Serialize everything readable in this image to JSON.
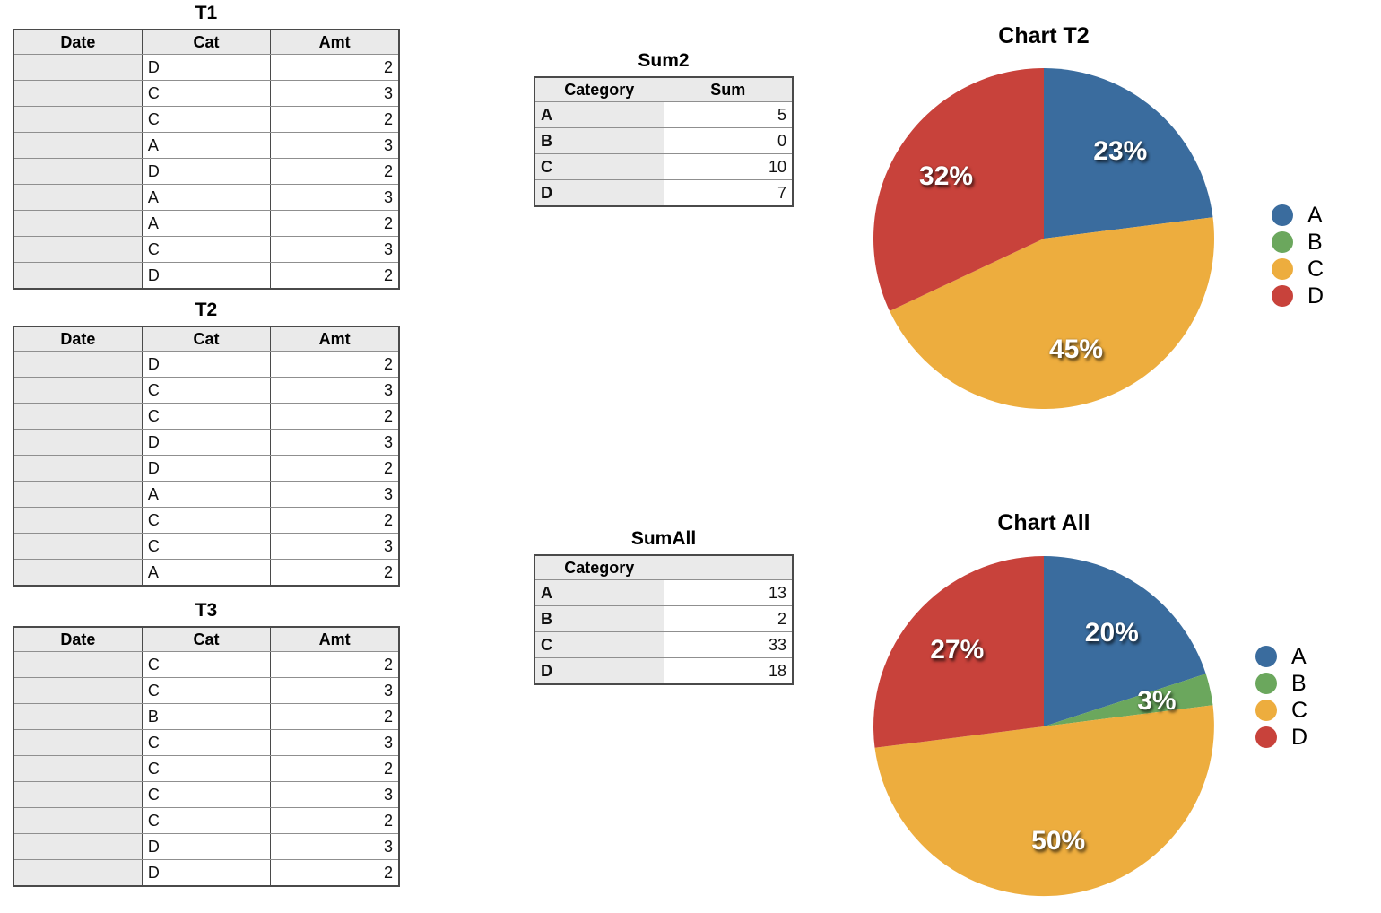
{
  "page": {
    "background": "#ffffff"
  },
  "palette": {
    "A": "#3A6C9E",
    "B": "#6BA75D",
    "C": "#EDAD3E",
    "D": "#C8423B"
  },
  "tables": [
    {
      "title": "T1",
      "headers": [
        "Date",
        "Cat",
        "Amt"
      ],
      "rows": [
        [
          "",
          "D",
          "2"
        ],
        [
          "",
          "C",
          "3"
        ],
        [
          "",
          "C",
          "2"
        ],
        [
          "",
          "A",
          "3"
        ],
        [
          "",
          "D",
          "2"
        ],
        [
          "",
          "A",
          "3"
        ],
        [
          "",
          "A",
          "2"
        ],
        [
          "",
          "C",
          "3"
        ],
        [
          "",
          "D",
          "2"
        ]
      ]
    },
    {
      "title": "T2",
      "headers": [
        "Date",
        "Cat",
        "Amt"
      ],
      "rows": [
        [
          "",
          "D",
          "2"
        ],
        [
          "",
          "C",
          "3"
        ],
        [
          "",
          "C",
          "2"
        ],
        [
          "",
          "D",
          "3"
        ],
        [
          "",
          "D",
          "2"
        ],
        [
          "",
          "A",
          "3"
        ],
        [
          "",
          "C",
          "2"
        ],
        [
          "",
          "C",
          "3"
        ],
        [
          "",
          "A",
          "2"
        ]
      ]
    },
    {
      "title": "T3",
      "headers": [
        "Date",
        "Cat",
        "Amt"
      ],
      "rows": [
        [
          "",
          "C",
          "2"
        ],
        [
          "",
          "C",
          "3"
        ],
        [
          "",
          "B",
          "2"
        ],
        [
          "",
          "C",
          "3"
        ],
        [
          "",
          "C",
          "2"
        ],
        [
          "",
          "C",
          "3"
        ],
        [
          "",
          "C",
          "2"
        ],
        [
          "",
          "D",
          "3"
        ],
        [
          "",
          "D",
          "2"
        ]
      ]
    },
    {
      "title": "Sum2",
      "headers": [
        "Category",
        "Sum"
      ],
      "rows": [
        [
          "A",
          "5"
        ],
        [
          "B",
          "0"
        ],
        [
          "C",
          "10"
        ],
        [
          "D",
          "7"
        ]
      ]
    },
    {
      "title": "SumAll",
      "headers": [
        "Category",
        ""
      ],
      "rows": [
        [
          "A",
          "13"
        ],
        [
          "B",
          "2"
        ],
        [
          "C",
          "33"
        ],
        [
          "D",
          "18"
        ]
      ]
    }
  ],
  "chart_data": [
    {
      "type": "pie",
      "title": "Chart T2",
      "labels": [
        "A",
        "B",
        "C",
        "D"
      ],
      "values": [
        23,
        0,
        45,
        32
      ],
      "data_labels": [
        "23%",
        "",
        "45%",
        "32%"
      ],
      "colors": [
        "#3A6C9E",
        "#6BA75D",
        "#EDAD3E",
        "#C8423B"
      ],
      "legend": [
        "A",
        "B",
        "C",
        "D"
      ],
      "legend_position": "right",
      "start_angle_deg": 0,
      "direction": "clockwise"
    },
    {
      "type": "pie",
      "title": "Chart All",
      "labels": [
        "A",
        "B",
        "C",
        "D"
      ],
      "values": [
        20,
        3,
        50,
        27
      ],
      "data_labels": [
        "20%",
        "3%",
        "50%",
        "27%"
      ],
      "colors": [
        "#3A6C9E",
        "#6BA75D",
        "#EDAD3E",
        "#C8423B"
      ],
      "legend": [
        "A",
        "B",
        "C",
        "D"
      ],
      "legend_position": "right",
      "start_angle_deg": 0,
      "direction": "clockwise"
    }
  ]
}
